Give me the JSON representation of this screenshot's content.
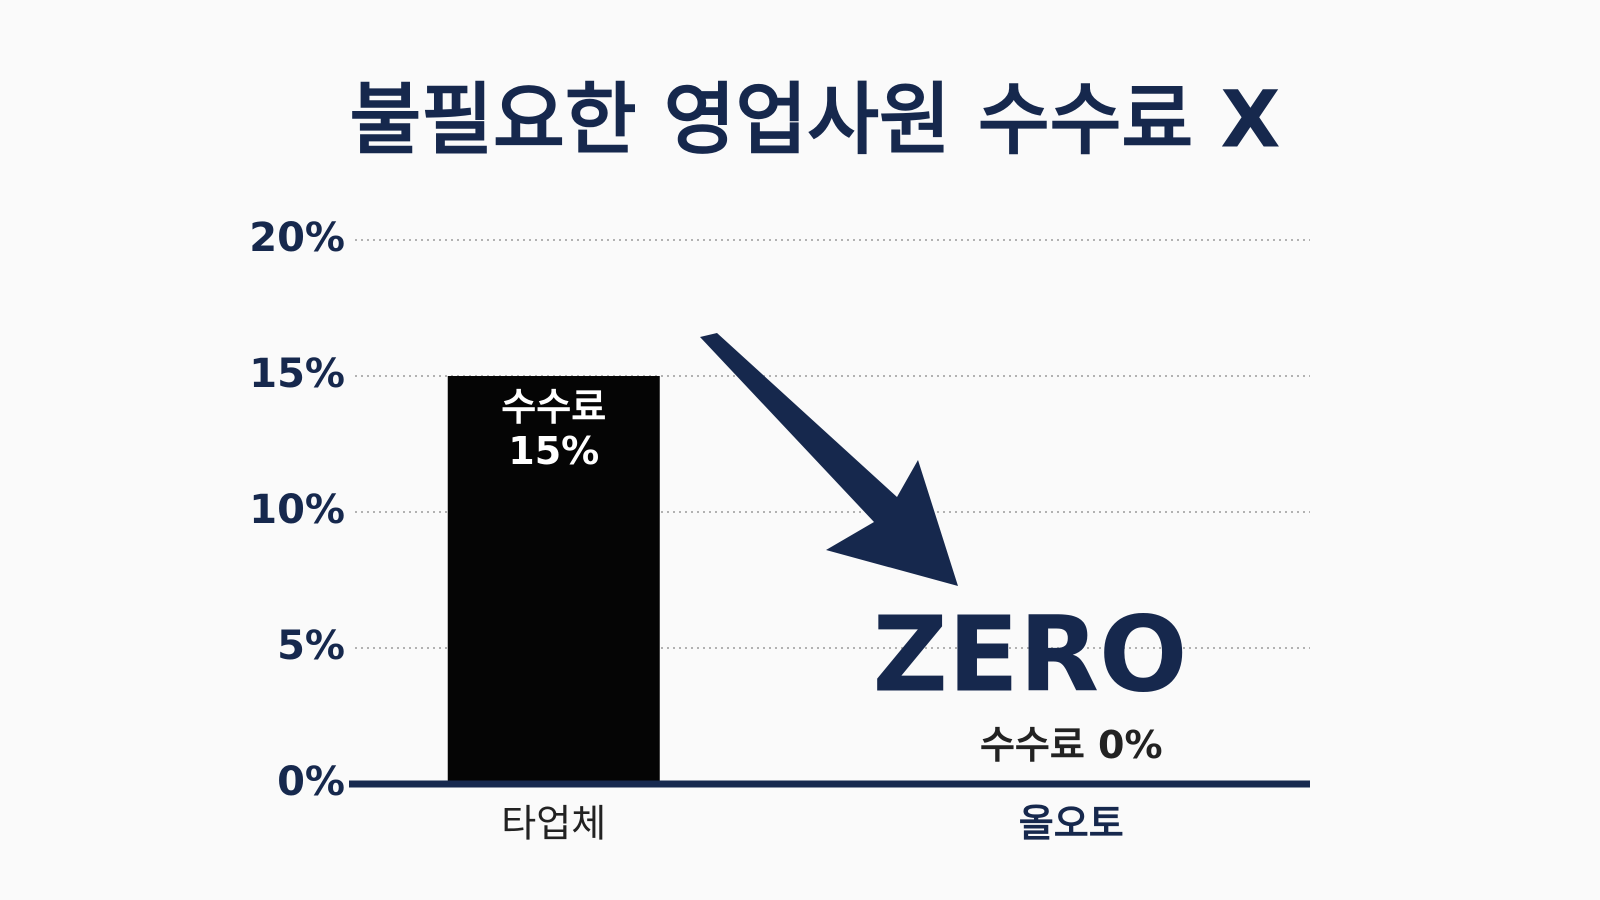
{
  "chart_data": {
    "type": "bar",
    "title": "불필요한 영업사원 수수료 X",
    "annotation": "ZERO",
    "categories": [
      "타업체",
      "올오토"
    ],
    "values": [
      15,
      0
    ],
    "value_labels": [
      "수수료 15%",
      "수수료 0%"
    ],
    "color": "#050505",
    "axis_color": "#17294f",
    "ylim": [
      0,
      20
    ],
    "yticks": [
      {
        "value": 0,
        "label": "0%"
      },
      {
        "value": 5,
        "label": "5%"
      },
      {
        "value": 10,
        "label": "10%"
      },
      {
        "value": 15,
        "label": "15%"
      },
      {
        "value": 20,
        "label": "20%"
      }
    ],
    "grid": true
  }
}
